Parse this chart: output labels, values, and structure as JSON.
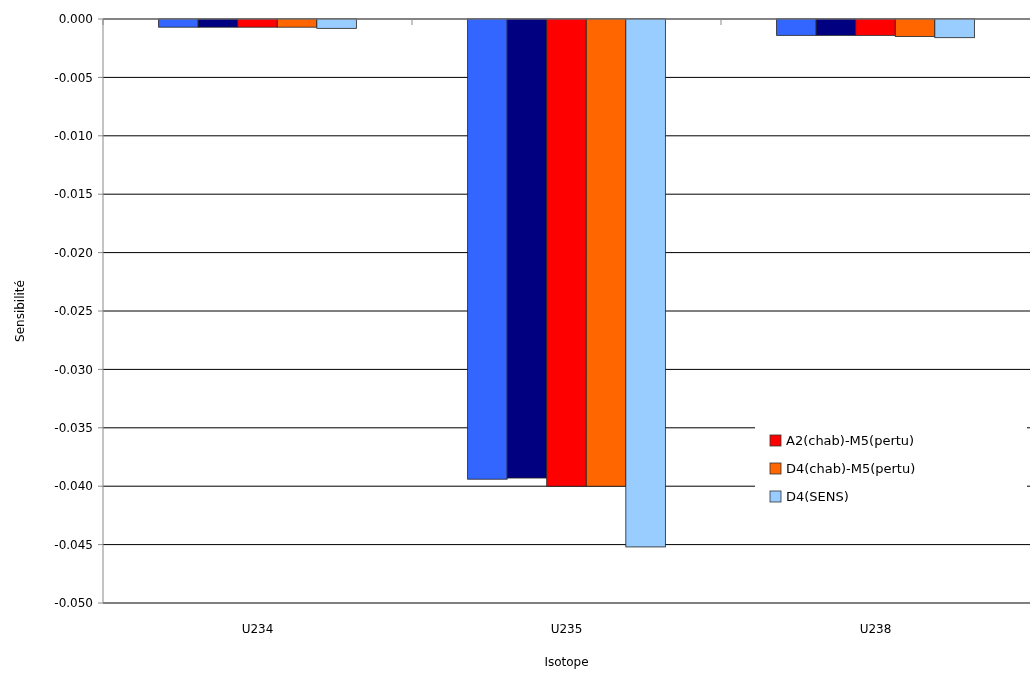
{
  "chart_data": {
    "type": "bar",
    "xlabel": "Isotope",
    "ylabel": "Sensibilité",
    "categories": [
      "U234",
      "U235",
      "U238"
    ],
    "series": [
      {
        "color": "#3366ff",
        "values": [
          -0.0007,
          -0.0394,
          -0.0014
        ]
      },
      {
        "color": "#000080",
        "values": [
          -0.0007,
          -0.0393,
          -0.0014
        ]
      },
      {
        "name": "A2(chab)-M5(pertu)",
        "color": "#ff0000",
        "values": [
          -0.0007,
          -0.04,
          -0.0014
        ]
      },
      {
        "name": "D4(chab)-M5(pertu)",
        "color": "#ff6600",
        "values": [
          -0.0007,
          -0.04,
          -0.0015
        ]
      },
      {
        "name": "D4(SENS)",
        "color": "#99ccff",
        "values": [
          -0.0008,
          -0.0452,
          -0.0016
        ]
      }
    ],
    "ylim": [
      -0.05,
      0
    ],
    "yticks": [
      {
        "value": 0,
        "label": "0.000"
      },
      {
        "value": -0.005,
        "label": "-0.005"
      },
      {
        "value": -0.01,
        "label": "-0.010"
      },
      {
        "value": -0.015,
        "label": "-0.015"
      },
      {
        "value": -0.02,
        "label": "-0.020"
      },
      {
        "value": -0.025,
        "label": "-0.025"
      },
      {
        "value": -0.03,
        "label": "-0.030"
      },
      {
        "value": -0.035,
        "label": "-0.035"
      },
      {
        "value": -0.04,
        "label": "-0.040"
      },
      {
        "value": -0.045,
        "label": "-0.045"
      },
      {
        "value": -0.05,
        "label": "-0.050"
      }
    ],
    "grid": "y",
    "legend": "bottom right"
  }
}
